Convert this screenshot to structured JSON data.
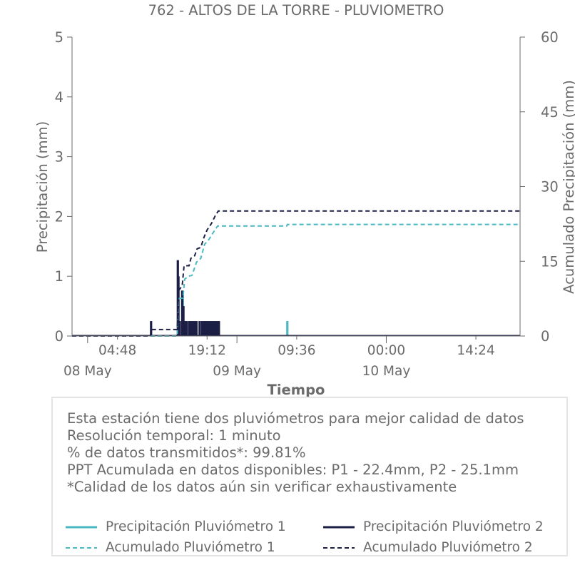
{
  "chart_data": {
    "type": "bar+line",
    "title": "762 - ALTOS DE LA TORRE - PLUVIOMETRO",
    "xlabel": "Tiempo",
    "ylabel": "Precipitación (mm)",
    "y2label": "Acumulado Precipitación (mm)",
    "ylim": [
      0,
      5
    ],
    "y2lim": [
      0,
      60
    ],
    "yticks": [
      "0",
      "1",
      "2",
      "3",
      "4",
      "5"
    ],
    "y2ticks": [
      "0",
      "15",
      "30",
      "45",
      "60"
    ],
    "x_time_ticks": [
      {
        "label": "04:48",
        "hours": 4.8
      },
      {
        "label": "19:12",
        "hours": 19.2
      },
      {
        "label": "09:36",
        "hours": 33.6
      },
      {
        "label": "00:00",
        "hours": 48.0
      },
      {
        "label": "14:24",
        "hours": 62.4
      }
    ],
    "x_date_ticks": [
      {
        "label": "08 May",
        "hours": 0
      },
      {
        "label": "09 May",
        "hours": 24
      },
      {
        "label": "10 May",
        "hours": 48
      }
    ],
    "xlim_hours": [
      -2.5,
      69.5
    ],
    "colors": {
      "p1": "#4bb8c4",
      "p2": "#1c1f45",
      "axis": "#6b6b6b"
    },
    "series": [
      {
        "name": "Precipitación Pluviómetro 1",
        "kind": "bars",
        "color": "#4bb8c4",
        "points": [
          [
            15.3,
            0.76
          ],
          [
            15.6,
            0.25
          ],
          [
            16.5,
            0.25
          ],
          [
            17.2,
            0.25
          ],
          [
            19.0,
            0.25
          ],
          [
            20.5,
            0.25
          ],
          [
            32.1,
            0.25
          ]
        ]
      },
      {
        "name": "Precipitación Pluviómetro 2",
        "kind": "bars",
        "color": "#1c1f45",
        "points": [
          [
            10.2,
            0.25
          ],
          [
            14.5,
            1.27
          ],
          [
            14.6,
            1.0
          ],
          [
            14.8,
            0.25
          ],
          [
            15.2,
            0.76
          ],
          [
            15.4,
            0.5
          ],
          [
            15.6,
            0.25
          ],
          [
            15.9,
            0.25
          ],
          [
            16.3,
            0.25
          ],
          [
            16.6,
            0.25
          ],
          [
            16.9,
            0.25
          ],
          [
            17.2,
            0.25
          ],
          [
            17.5,
            0.25
          ],
          [
            18.0,
            0.25
          ],
          [
            18.4,
            0.25
          ],
          [
            18.7,
            0.25
          ],
          [
            19.0,
            0.25
          ],
          [
            19.3,
            0.25
          ],
          [
            19.6,
            0.25
          ],
          [
            19.9,
            0.25
          ],
          [
            20.2,
            0.25
          ],
          [
            20.5,
            0.25
          ],
          [
            20.8,
            0.25
          ],
          [
            21.1,
            0.25
          ]
        ]
      },
      {
        "name": "Acumulado Pluviómetro 1",
        "kind": "line",
        "color": "#4bb8c4",
        "points": [
          [
            -2.5,
            0
          ],
          [
            14.4,
            0
          ],
          [
            14.6,
            7.5
          ],
          [
            15.3,
            7.6
          ],
          [
            15.6,
            11.4
          ],
          [
            16.2,
            12.0
          ],
          [
            16.8,
            12.2
          ],
          [
            17.5,
            14.8
          ],
          [
            18.2,
            15.6
          ],
          [
            18.8,
            18.4
          ],
          [
            19.5,
            19.4
          ],
          [
            20.3,
            21.0
          ],
          [
            20.9,
            22.1
          ],
          [
            32.0,
            22.1
          ],
          [
            32.1,
            22.4
          ],
          [
            69.5,
            22.4
          ]
        ]
      },
      {
        "name": "Acumulado Pluviómetro 2",
        "kind": "line",
        "color": "#1c1f45",
        "points": [
          [
            -2.5,
            0
          ],
          [
            10.1,
            0
          ],
          [
            10.2,
            1.3
          ],
          [
            14.4,
            1.3
          ],
          [
            14.6,
            9.1
          ],
          [
            15.2,
            10.1
          ],
          [
            15.5,
            14.1
          ],
          [
            16.3,
            14.1
          ],
          [
            16.6,
            15.6
          ],
          [
            17.2,
            16.1
          ],
          [
            17.6,
            17.5
          ],
          [
            18.2,
            17.8
          ],
          [
            18.7,
            19.8
          ],
          [
            19.2,
            21.3
          ],
          [
            19.9,
            22.6
          ],
          [
            20.5,
            24.1
          ],
          [
            21.0,
            25.1
          ],
          [
            69.5,
            25.1
          ]
        ]
      }
    ]
  },
  "info": {
    "lines": [
      "Esta estación tiene dos pluviómetros para mejor calidad de datos",
      "Resolución temporal: 1 minuto",
      "% de datos transmitidos*: 99.81%",
      "PPT Acumulada en datos disponibles: P1 - 22.4mm, P2 - 25.1mm",
      "*Calidad de los datos aún sin verificar exhaustivamente"
    ]
  },
  "legend": {
    "p1_precip": "Precipitación Pluviómetro 1",
    "p2_precip": "Precipitación Pluviómetro 2",
    "p1_acum": "Acumulado Pluviómetro 1",
    "p2_acum": "Acumulado Pluviómetro 2"
  }
}
